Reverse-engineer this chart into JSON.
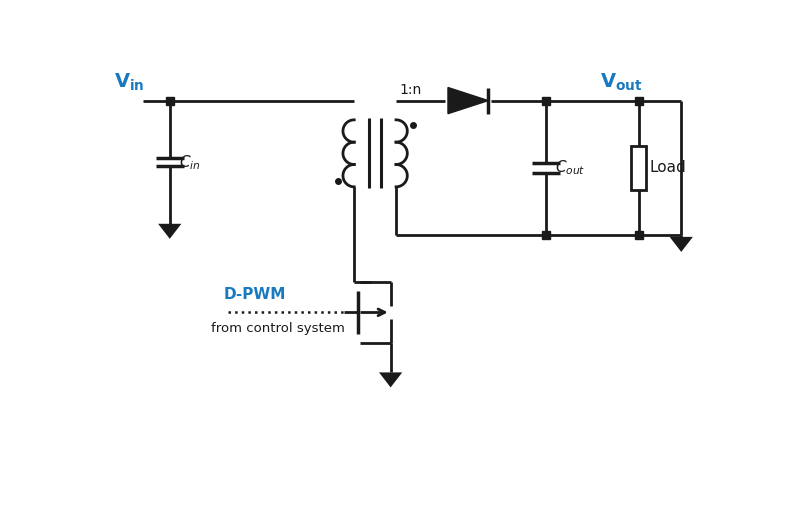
{
  "bg_color": "#ffffff",
  "line_color": "#1a1a1a",
  "blue_color": "#1a7abf",
  "line_width": 2.0,
  "load_label": "Load",
  "turn_ratio": "1:n",
  "dpwm_label": "D-PWM",
  "ctrl_label": "from control system"
}
